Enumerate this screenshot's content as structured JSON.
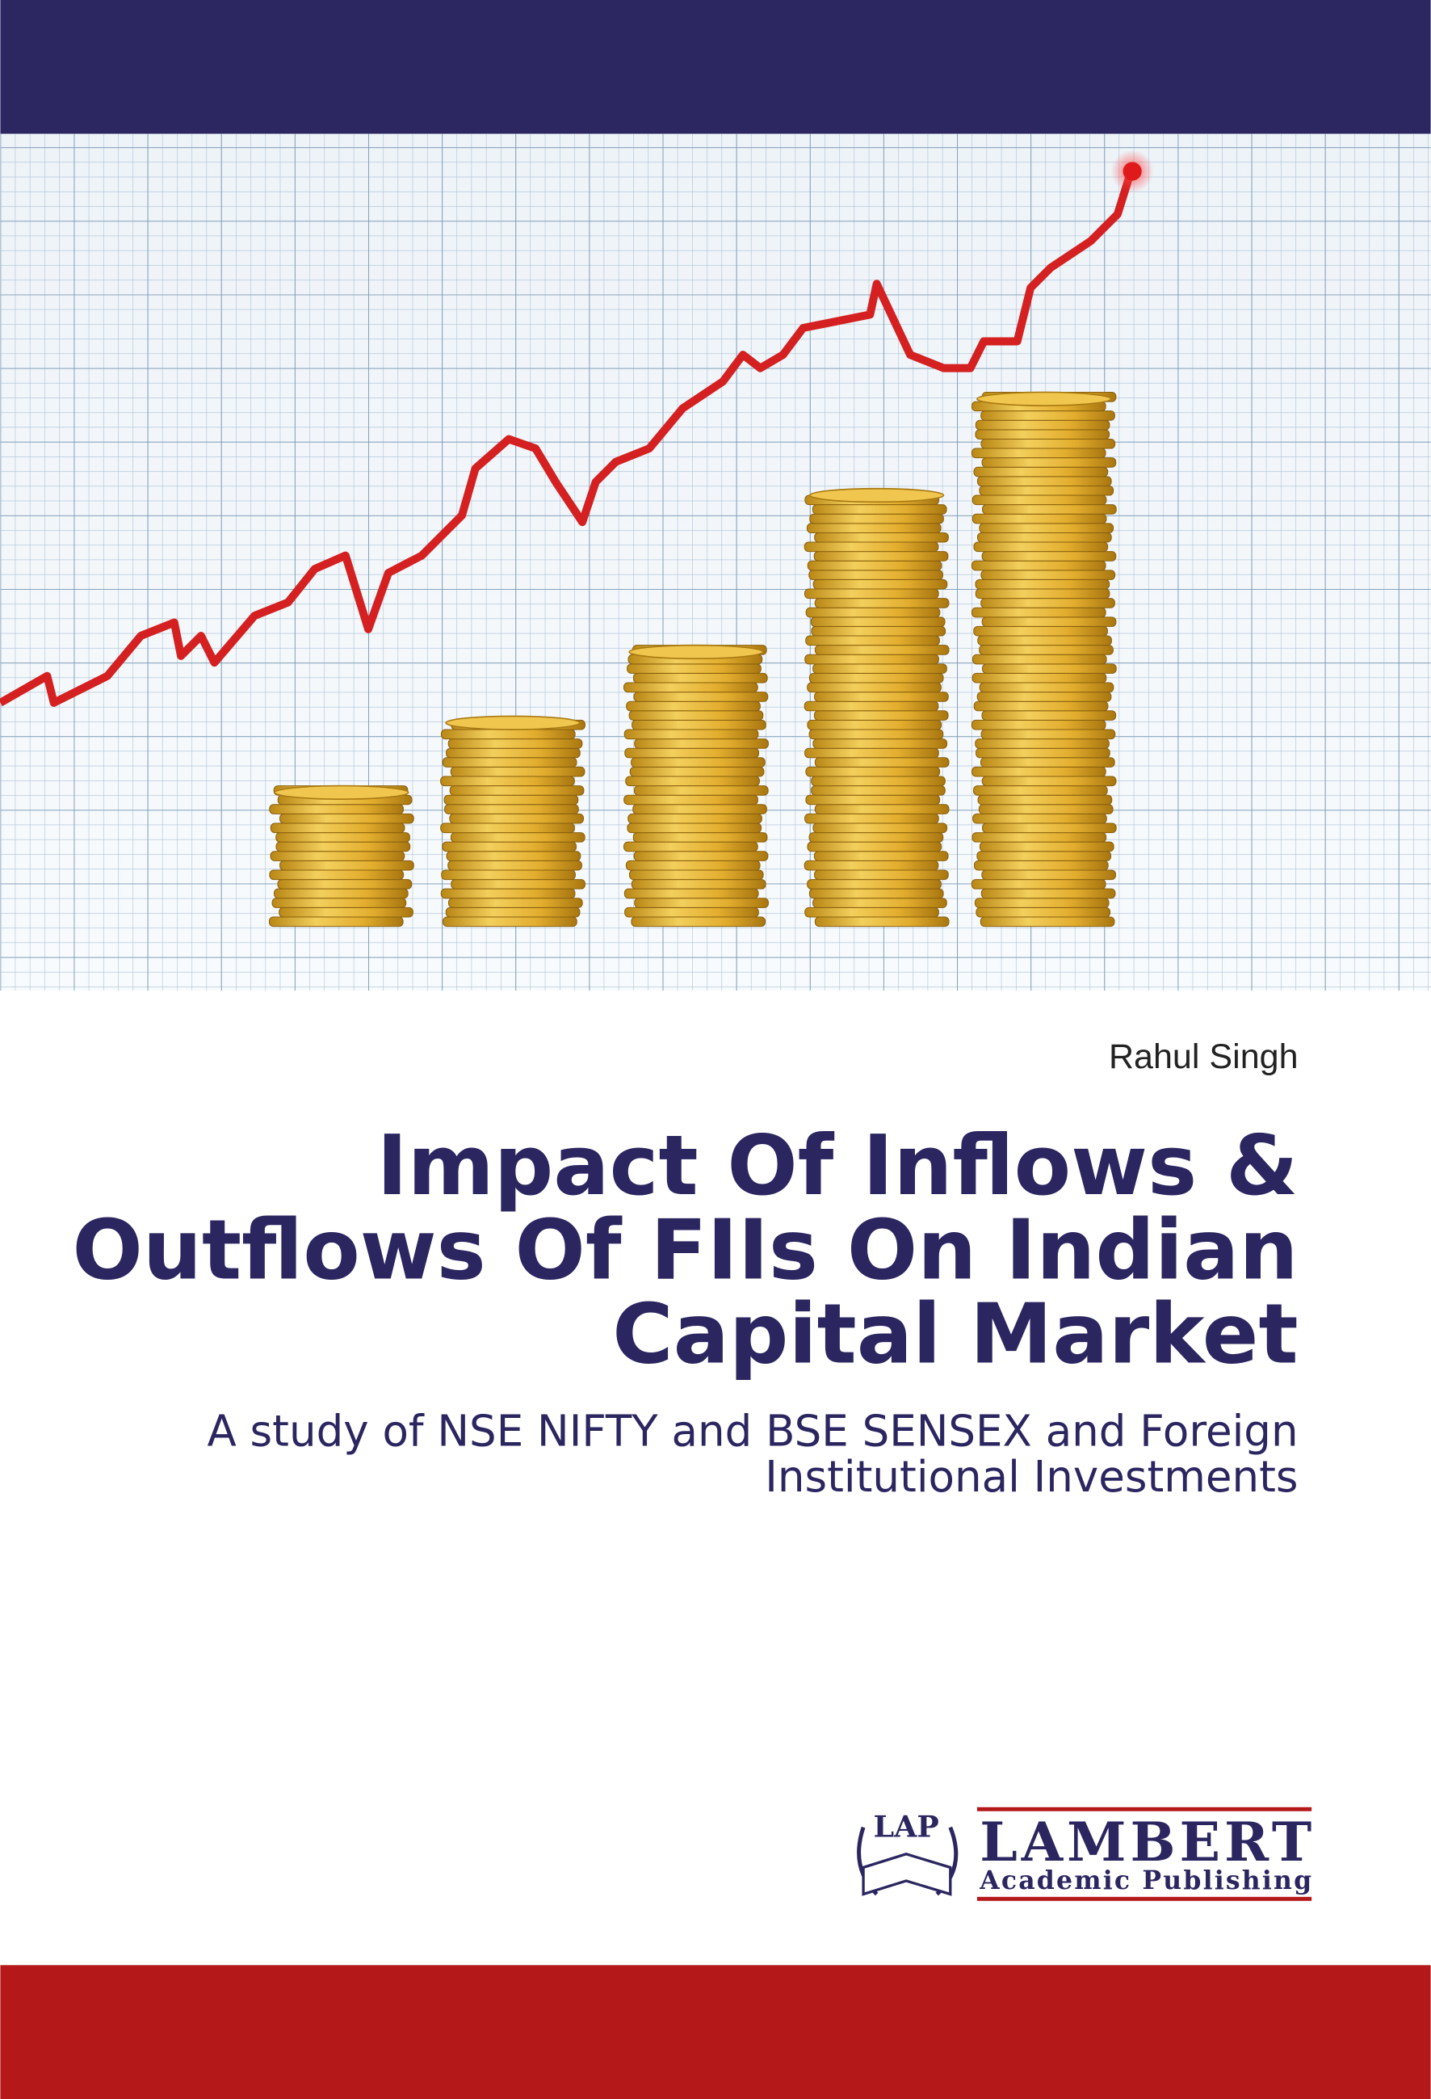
{
  "author": "Rahul  Singh",
  "title": {
    "lines": [
      "Impact Of Inflows &",
      "Outflows Of FIIs On Indian",
      "Capital Market"
    ]
  },
  "subtitle": {
    "lines": [
      "A study of NSE NIFTY and BSE SENSEX and Foreign",
      "Institutional Investments"
    ]
  },
  "publisher": {
    "emblem": "LAP",
    "name": "LAMBERT",
    "imprint": "Academic Publishing"
  }
}
